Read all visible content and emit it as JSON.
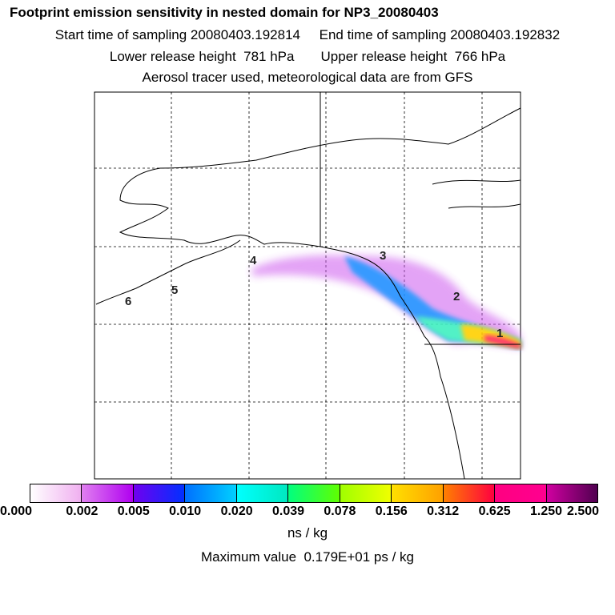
{
  "header": {
    "title": "Footprint emission sensitivity in nested domain for NP3_20080403",
    "line2": "Start time of sampling 20080403.192814     End time of sampling 20080403.192832",
    "line3": "Lower release height  781 hPa       Upper release height  766 hPa",
    "line4": "Aerosol tracer used, meteorological data are from GFS"
  },
  "map": {
    "point_labels": [
      "1",
      "2",
      "3",
      "4",
      "5",
      "6"
    ]
  },
  "colorbar": {
    "labels": [
      "0.000",
      "0.002",
      "0.005",
      "0.010",
      "0.020",
      "0.039",
      "0.078",
      "0.156",
      "0.312",
      "0.625",
      "1.250",
      "2.500"
    ],
    "segments": [
      [
        "#ffffff",
        "#f0b0f0"
      ],
      [
        "#e080f0",
        "#b000f0"
      ],
      [
        "#7000f0",
        "#0030ff"
      ],
      [
        "#0070ff",
        "#00d0ff"
      ],
      [
        "#00ffff",
        "#00e8c0"
      ],
      [
        "#00ff80",
        "#60ff00"
      ],
      [
        "#a0ff00",
        "#f0ff00"
      ],
      [
        "#ffe000",
        "#ffa000"
      ],
      [
        "#ff8000",
        "#ff0040"
      ],
      [
        "#ff0080",
        "#ff0090"
      ],
      [
        "#d000a0",
        "#500050"
      ]
    ],
    "unit": "ns / kg"
  },
  "footer": {
    "max_value": "Maximum value  0.179E+01 ps / kg"
  }
}
